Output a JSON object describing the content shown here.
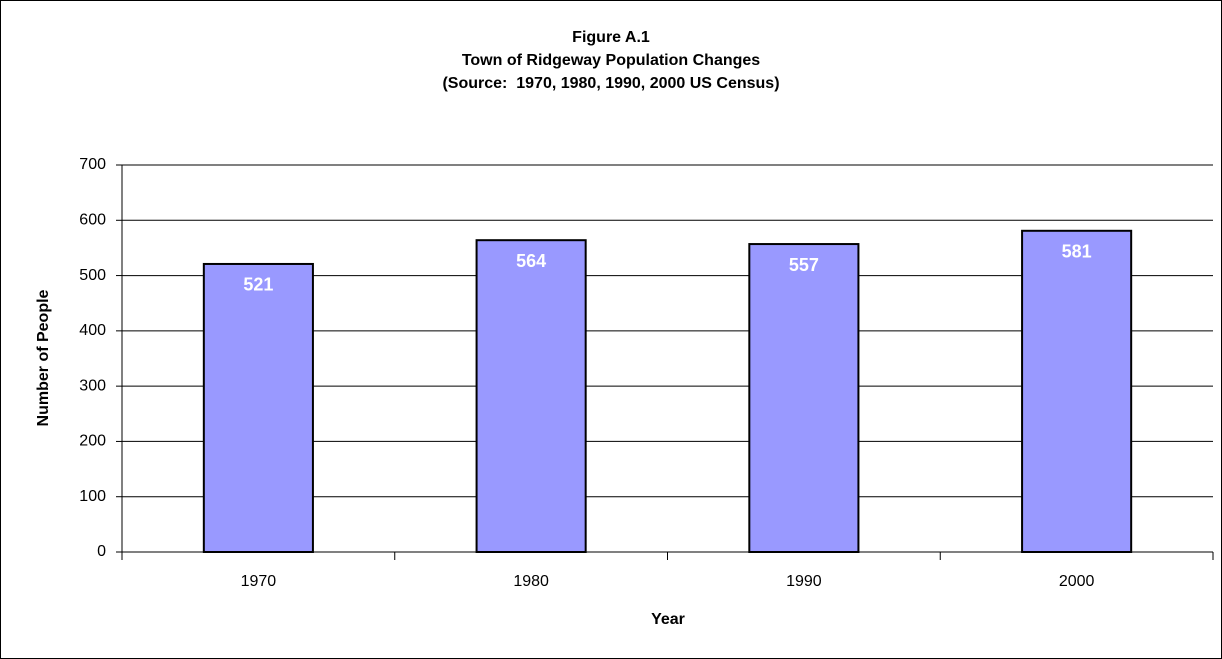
{
  "chart_data": {
    "type": "bar",
    "title": [
      "Figure A.1",
      "Town of Ridgeway Population Changes",
      "(Source:  1970, 1980, 1990, 2000 US Census)"
    ],
    "x_label": "Year",
    "y_label": "Number of People",
    "categories": [
      "1970",
      "1980",
      "1990",
      "2000"
    ],
    "values": [
      521,
      564,
      557,
      581
    ],
    "color": "#9999ff",
    "ylim": [
      0,
      700
    ],
    "yticks": [
      0,
      100,
      200,
      300,
      400,
      500,
      600,
      700
    ],
    "grid": true
  }
}
